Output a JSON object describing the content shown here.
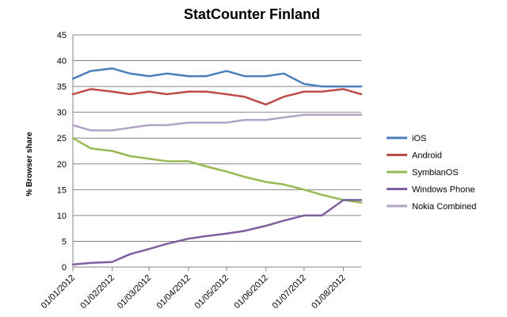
{
  "chart_data": {
    "type": "line",
    "title": "StatCounter Finland",
    "xlabel": "",
    "ylabel": "% Browser share",
    "ylim": [
      0,
      45
    ],
    "yticks": [
      0,
      5,
      10,
      15,
      20,
      25,
      30,
      35,
      40,
      45
    ],
    "xlim": [
      "01/01/2012",
      "15/08/2012"
    ],
    "xticks": [
      "01/01/2012",
      "01/02/2012",
      "01/03/2012",
      "01/04/2012",
      "01/05/2012",
      "01/06/2012",
      "01/07/2012",
      "01/08/2012"
    ],
    "grid": "horizontal",
    "legend_position": "right",
    "x": [
      "01/01/2012",
      "15/01/2012",
      "01/02/2012",
      "15/02/2012",
      "01/03/2012",
      "15/03/2012",
      "01/04/2012",
      "15/04/2012",
      "01/05/2012",
      "15/05/2012",
      "01/06/2012",
      "15/06/2012",
      "01/07/2012",
      "15/07/2012",
      "01/08/2012",
      "15/08/2012"
    ],
    "series": [
      {
        "name": "iOS",
        "color": "#4a7ebb",
        "values": [
          36.5,
          38.0,
          38.5,
          37.5,
          37.0,
          37.5,
          37.0,
          37.0,
          38.0,
          37.0,
          37.0,
          37.5,
          35.5,
          35.0,
          35.0,
          35.0
        ]
      },
      {
        "name": "Android",
        "color": "#be4b48",
        "values": [
          33.5,
          34.5,
          34.0,
          33.5,
          34.0,
          33.5,
          34.0,
          34.0,
          33.5,
          33.0,
          31.5,
          33.0,
          34.0,
          34.0,
          34.5,
          33.5
        ]
      },
      {
        "name": "SymbianOS",
        "color": "#98b954",
        "values": [
          25.0,
          23.0,
          22.5,
          21.5,
          21.0,
          20.5,
          20.5,
          19.5,
          18.5,
          17.5,
          16.5,
          16.0,
          15.0,
          14.0,
          13.0,
          12.5
        ]
      },
      {
        "name": "Windows Phone",
        "color": "#7d5fa0",
        "values": [
          0.5,
          0.8,
          1.0,
          2.5,
          3.5,
          4.5,
          5.5,
          6.0,
          6.5,
          7.0,
          8.0,
          9.0,
          10.0,
          10.0,
          13.0,
          13.0
        ]
      },
      {
        "name": "Nokia Combined",
        "color": "#b3a2c7",
        "values": [
          27.5,
          26.5,
          26.5,
          27.0,
          27.5,
          27.5,
          28.0,
          28.0,
          28.0,
          28.5,
          28.5,
          29.0,
          29.5,
          29.5,
          29.5,
          29.5
        ]
      }
    ]
  }
}
